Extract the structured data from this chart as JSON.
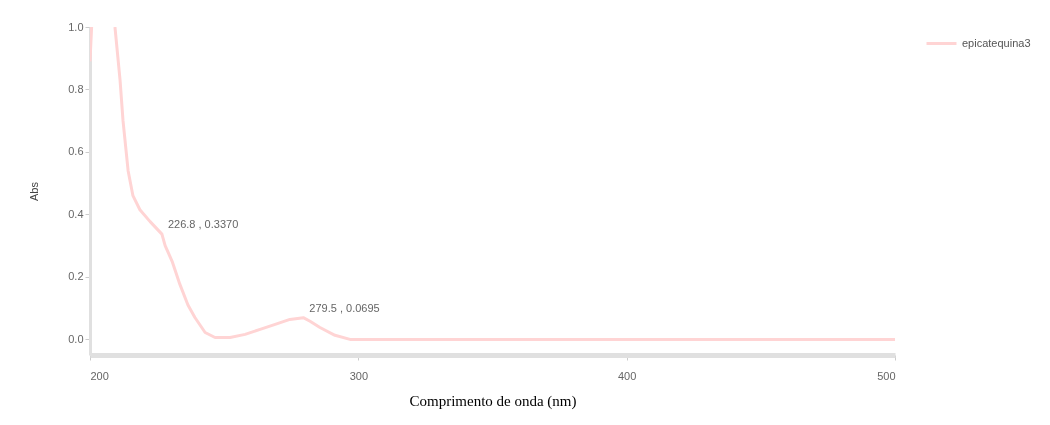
{
  "chart_data": {
    "type": "line",
    "xlabel": "Comprimento de onda (nm)",
    "ylabel": "Abs",
    "xlim": [
      200,
      500
    ],
    "ylim": [
      -0.05,
      1.0
    ],
    "xticks": [
      200,
      300,
      400,
      500
    ],
    "yticks": [
      {
        "value": 0,
        "label": "0.0"
      },
      0.2,
      0.4,
      0.6,
      0.8,
      {
        "value": 1,
        "label": "1.0"
      }
    ],
    "grid": false,
    "legend": "top right",
    "marker": "none",
    "line_style": "solid",
    "x": [
      200,
      200.6,
      205,
      209.3,
      211.2,
      212.3,
      214.2,
      216.0,
      218.6,
      222.4,
      226.8,
      228.0,
      230.6,
      233.5,
      236.5,
      239.1,
      242.9,
      246.6,
      252.2,
      257.8,
      263.4,
      269.0,
      274.5,
      279.5,
      282.0,
      285.7,
      291.3,
      296.9,
      315.5,
      352.8,
      427.4,
      500
    ],
    "series": [
      {
        "name": "epicatequina3",
        "color": "#ffd4d4",
        "values": [
          0.89,
          1.0,
          null,
          1.0,
          0.83,
          0.7,
          0.54,
          0.46,
          0.415,
          0.377,
          0.337,
          0.3,
          0.25,
          0.176,
          0.11,
          0.07,
          0.022,
          0.006,
          0.006,
          0.016,
          0.032,
          0.048,
          0.064,
          0.0695,
          0.058,
          0.038,
          0.013,
          0.0,
          0.0,
          0.0,
          0.0,
          0.0
        ]
      }
    ],
    "annotations": [
      {
        "text": "226.8 , 0.3370",
        "x": 226.8,
        "y": 0.337
      },
      {
        "text": "279.5 , 0.0695",
        "x": 279.5,
        "y": 0.0695
      }
    ]
  }
}
